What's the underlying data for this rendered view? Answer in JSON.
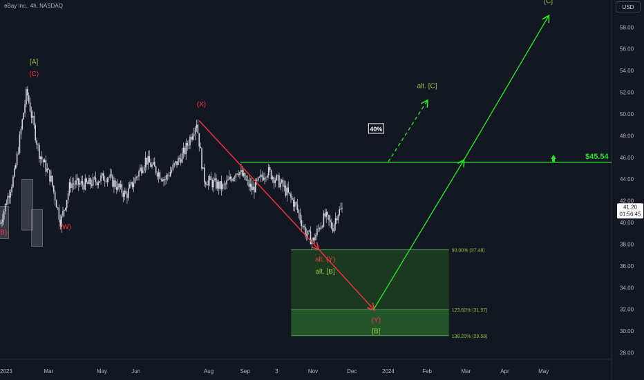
{
  "header": {
    "symbol_title": "eBay Inc., 4h, NASDAQ",
    "currency": "USD"
  },
  "colors": {
    "background": "#131722",
    "candle": "#d1d4dc",
    "green": "#2de02a",
    "green_dark": "#1b5e20",
    "red": "#f23645",
    "wave_label_green": "#8bc34a",
    "axis_text": "#b2b5be"
  },
  "chart_data": {
    "type": "line",
    "title": "eBay Inc., 4h, NASDAQ",
    "ylim": [
      27.4,
      60.5
    ],
    "y_ticks": [
      28,
      30,
      32,
      34,
      36,
      38,
      40,
      42,
      44,
      46,
      48,
      50,
      52,
      54,
      56,
      58
    ],
    "y_tick_labels": [
      "28.00",
      "30.00",
      "32.00",
      "34.00",
      "36.00",
      "38.00",
      "40.00",
      "42.00",
      "44.00",
      "46.00",
      "48.00",
      "50.00",
      "52.00",
      "54.00",
      "56.00",
      "58.00"
    ],
    "x_ticks": [
      {
        "label": "2023",
        "week": 0
      },
      {
        "label": "Mar",
        "week": 10
      },
      {
        "label": "May",
        "week": 21
      },
      {
        "label": "Jun",
        "week": 28
      },
      {
        "label": "Aug",
        "week": 43
      },
      {
        "label": "Sep",
        "week": 50.5
      },
      {
        "label": "3",
        "week": 57
      },
      {
        "label": "Nov",
        "week": 64.5
      },
      {
        "label": "Dec",
        "week": 72.5
      },
      {
        "label": "2024",
        "week": 80
      },
      {
        "label": "Feb",
        "week": 88
      },
      {
        "label": "Mar",
        "week": 96
      },
      {
        "label": "Apr",
        "week": 104
      },
      {
        "label": "May",
        "week": 112
      }
    ],
    "price_path": [
      {
        "week": 0,
        "price": 39.9
      },
      {
        "week": 3,
        "price": 44.5
      },
      {
        "week": 5.5,
        "price": 52.1
      },
      {
        "week": 8,
        "price": 46.5
      },
      {
        "week": 10.5,
        "price": 44.0
      },
      {
        "week": 12.5,
        "price": 40.0
      },
      {
        "week": 14.5,
        "price": 43.6
      },
      {
        "week": 18,
        "price": 43.5
      },
      {
        "week": 22,
        "price": 44.3
      },
      {
        "week": 26,
        "price": 42.5
      },
      {
        "week": 30,
        "price": 45.8
      },
      {
        "week": 34,
        "price": 44.0
      },
      {
        "week": 38,
        "price": 46.5
      },
      {
        "week": 40.5,
        "price": 49.3
      },
      {
        "week": 42,
        "price": 44.0
      },
      {
        "week": 46,
        "price": 43.2
      },
      {
        "week": 49,
        "price": 44.9
      },
      {
        "week": 52,
        "price": 43.0
      },
      {
        "week": 55,
        "price": 44.8
      },
      {
        "week": 58,
        "price": 43.5
      },
      {
        "week": 61,
        "price": 41.5
      },
      {
        "week": 63,
        "price": 39.0
      },
      {
        "week": 64.5,
        "price": 38.3
      },
      {
        "week": 66,
        "price": 39.8
      },
      {
        "week": 67,
        "price": 40.6
      },
      {
        "week": 68.5,
        "price": 39.5
      },
      {
        "week": 69.5,
        "price": 40.9
      },
      {
        "week": 70.5,
        "price": 41.2
      }
    ],
    "current_price": "41.20",
    "countdown": "01:56:45",
    "resistance": {
      "price": 45.54,
      "label": "$45.54"
    },
    "fib_levels": [
      {
        "label": "90.00% (37.48)",
        "price": 37.48
      },
      {
        "label": "123.60% (31.97)",
        "price": 31.97
      },
      {
        "label": "138.20% (29.58)",
        "price": 29.58
      }
    ],
    "zone_box": {
      "x_start": 60,
      "x_end": 92.5,
      "top": 37.48,
      "bottom": 29.58
    },
    "red_projection": [
      {
        "week": 41,
        "price": 49.4
      },
      {
        "week": 65.5,
        "price": 37.6
      },
      {
        "week": 77,
        "price": 32.0
      }
    ],
    "green_projection": [
      {
        "week": 77,
        "price": 32.0
      },
      {
        "week": 95.5,
        "price": 45.7
      },
      {
        "week": 113,
        "price": 59.0
      }
    ],
    "alt_projection": [
      {
        "week": 80,
        "price": 45.6
      },
      {
        "week": 88,
        "price": 51.2
      }
    ],
    "alt_percent": "40%",
    "wave_labels": [
      {
        "text": "[A]",
        "week": 7,
        "price": 54.6,
        "color": "green"
      },
      {
        "text": "(C)",
        "week": 7,
        "price": 53.5,
        "color": "red"
      },
      {
        "text": "(X)",
        "week": 41.5,
        "price": 50.7,
        "color": "red"
      },
      {
        "text": "(B)",
        "week": 0.5,
        "price": 38.9,
        "color": "red"
      },
      {
        "text": "(W)",
        "week": 13.5,
        "price": 39.4,
        "color": "red"
      },
      {
        "text": "alt. (Y)",
        "week": 67,
        "price": 36.4,
        "color": "red"
      },
      {
        "text": "alt. [B]",
        "week": 67,
        "price": 35.3,
        "color": "green"
      },
      {
        "text": "(Y)",
        "week": 77.5,
        "price": 30.8,
        "color": "red"
      },
      {
        "text": "[B]",
        "week": 77.5,
        "price": 29.8,
        "color": "green"
      },
      {
        "text": "alt. [C]",
        "week": 88,
        "price": 52.4,
        "color": "green"
      },
      {
        "text": "[C]",
        "week": 113,
        "price": 60.2,
        "color": "green"
      }
    ]
  }
}
